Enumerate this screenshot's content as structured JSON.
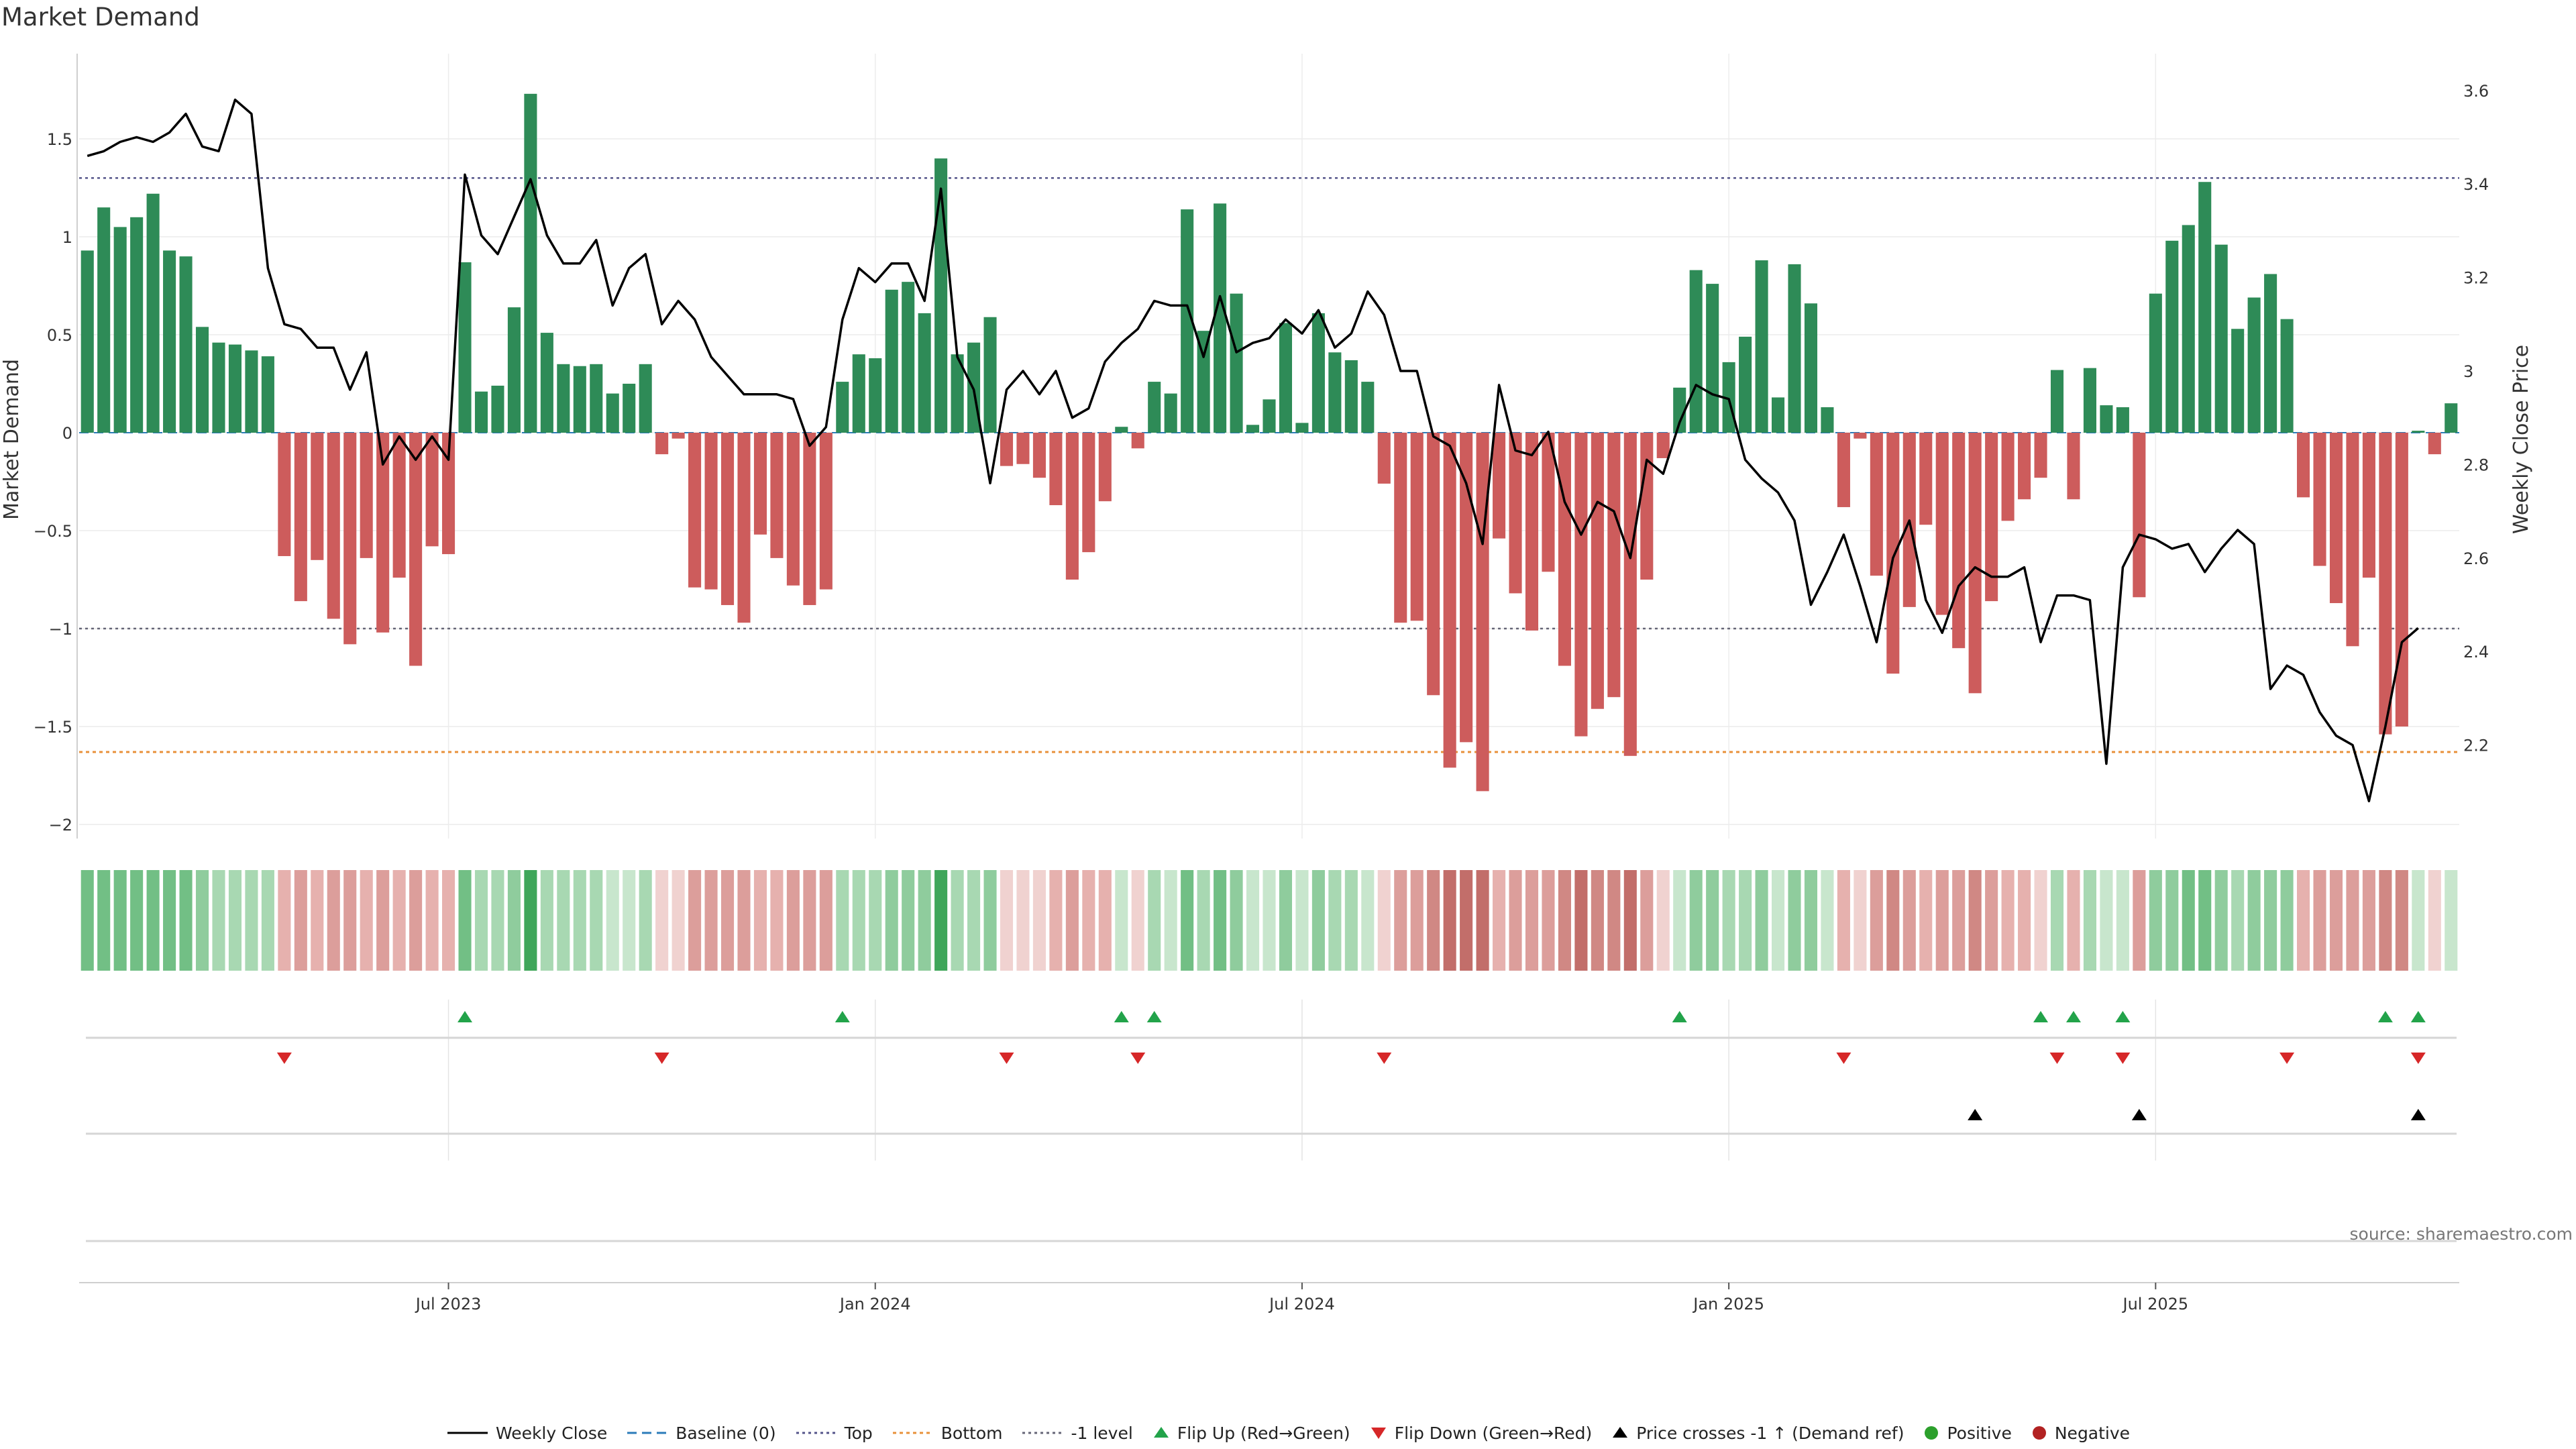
{
  "title": "Market Demand",
  "source": "source: sharemaestro.com",
  "colors": {
    "positive_bar": "#2e8b57",
    "negative_bar": "#cd5c5c",
    "price_line": "#000000",
    "top_line": "#55558a",
    "bottom_line": "#e8913a",
    "minus1_line": "#666677",
    "flip_up": "#22a34a",
    "flip_down": "#d62728",
    "cross_marker": "#000000",
    "positive_dot": "#2ca02c",
    "negative_dot": "#b22222"
  },
  "chart_data": {
    "type": "bar",
    "title": "Market Demand",
    "ylabel": "Market Demand",
    "y2label": "Weekly Close Price",
    "ylim": [
      -2.05,
      1.95
    ],
    "y2lim": [
      2.0,
      3.63
    ],
    "yticks": [
      {
        "v": 1.5,
        "label": "1.5"
      },
      {
        "v": 1,
        "label": "1"
      },
      {
        "v": 0.5,
        "label": "0.5"
      },
      {
        "v": 0,
        "label": "0"
      },
      {
        "v": -0.5,
        "label": "−0.5"
      },
      {
        "v": -1,
        "label": "−1"
      },
      {
        "v": -1.5,
        "label": "−1.5"
      },
      {
        "v": -2,
        "label": "−2"
      }
    ],
    "y2ticks": [
      {
        "v": 3.6,
        "label": "3.6"
      },
      {
        "v": 3.4,
        "label": "3.4"
      },
      {
        "v": 3.2,
        "label": "3.2"
      },
      {
        "v": 3.0,
        "label": "3"
      },
      {
        "v": 2.8,
        "label": "2.8"
      },
      {
        "v": 2.6,
        "label": "2.6"
      },
      {
        "v": 2.4,
        "label": "2.4"
      },
      {
        "v": 2.2,
        "label": "2.2"
      }
    ],
    "xticks": [
      {
        "i": 22,
        "label": "Jul 2023"
      },
      {
        "i": 48,
        "label": "Jan 2024"
      },
      {
        "i": 74,
        "label": "Jul 2024"
      },
      {
        "i": 100,
        "label": "Jan 2025"
      },
      {
        "i": 126,
        "label": "Jul 2025"
      }
    ],
    "levels": {
      "top": 1.3,
      "bottom": -1.63,
      "minus1": -1.0
    },
    "demand": [
      0.93,
      1.15,
      1.05,
      1.1,
      1.22,
      0.93,
      0.9,
      0.54,
      0.46,
      0.45,
      0.42,
      0.39,
      -0.63,
      -0.86,
      -0.65,
      -0.95,
      -1.08,
      -0.64,
      -1.02,
      -0.74,
      -1.19,
      -0.58,
      -0.62,
      0.87,
      0.21,
      0.24,
      0.64,
      1.73,
      0.51,
      0.35,
      0.34,
      0.35,
      0.2,
      0.25,
      0.35,
      -0.11,
      -0.03,
      -0.79,
      -0.8,
      -0.88,
      -0.97,
      -0.52,
      -0.64,
      -0.78,
      -0.88,
      -0.8,
      0.26,
      0.4,
      0.38,
      0.73,
      0.77,
      0.61,
      1.4,
      0.4,
      0.46,
      0.59,
      -0.17,
      -0.16,
      -0.23,
      -0.37,
      -0.75,
      -0.61,
      -0.35,
      0.03,
      -0.08,
      0.26,
      0.2,
      1.14,
      0.52,
      1.17,
      0.71,
      0.04,
      0.17,
      0.56,
      0.05,
      0.61,
      0.41,
      0.37,
      0.26,
      -0.26,
      -0.97,
      -0.96,
      -1.34,
      -1.71,
      -1.58,
      -1.83,
      -0.54,
      -0.82,
      -1.01,
      -0.71,
      -1.19,
      -1.55,
      -1.41,
      -1.35,
      -1.65,
      -0.75,
      -0.13,
      0.23,
      0.83,
      0.76,
      0.36,
      0.49,
      0.88,
      0.18,
      0.86,
      0.66,
      0.13,
      -0.38,
      -0.03,
      -0.73,
      -1.23,
      -0.89,
      -0.47,
      -0.93,
      -1.1,
      -1.33,
      -0.86,
      -0.45,
      -0.34,
      -0.23,
      0.32,
      -0.34,
      0.33,
      0.14,
      0.13,
      -0.84,
      0.71,
      0.98,
      1.06,
      1.28,
      0.96,
      0.53,
      0.69,
      0.81,
      0.58,
      -0.33,
      -0.68,
      -0.87,
      -1.09,
      -0.74,
      -1.54,
      -1.5,
      0.01,
      -0.11,
      0.15
    ],
    "price": [
      3.46,
      3.47,
      3.49,
      3.5,
      3.49,
      3.51,
      3.55,
      3.48,
      3.47,
      3.58,
      3.55,
      3.22,
      3.1,
      3.09,
      3.05,
      3.05,
      2.96,
      3.04,
      2.8,
      2.86,
      2.81,
      2.86,
      2.81,
      3.42,
      3.29,
      3.25,
      3.33,
      3.41,
      3.29,
      3.23,
      3.23,
      3.28,
      3.14,
      3.22,
      3.25,
      3.1,
      3.15,
      3.11,
      3.03,
      2.99,
      2.95,
      2.95,
      2.95,
      2.94,
      2.84,
      2.88,
      3.11,
      3.22,
      3.19,
      3.23,
      3.23,
      3.15,
      3.39,
      3.03,
      2.96,
      2.76,
      2.96,
      3.0,
      2.95,
      3.0,
      2.9,
      2.92,
      3.02,
      3.06,
      3.09,
      3.15,
      3.14,
      3.14,
      3.03,
      3.16,
      3.04,
      3.06,
      3.07,
      3.11,
      3.08,
      3.13,
      3.05,
      3.08,
      3.17,
      3.12,
      3.0,
      3.0,
      2.86,
      2.84,
      2.76,
      2.63,
      2.97,
      2.83,
      2.82,
      2.87,
      2.72,
      2.65,
      2.72,
      2.7,
      2.6,
      2.81,
      2.78,
      2.89,
      2.97,
      2.95,
      2.94,
      2.81,
      2.77,
      2.74,
      2.68,
      2.5,
      2.57,
      2.65,
      2.54,
      2.42,
      2.6,
      2.68,
      2.51,
      2.44,
      2.54,
      2.58,
      2.56,
      2.56,
      2.58,
      2.42,
      2.52,
      2.52,
      2.51,
      2.16,
      2.58,
      2.65,
      2.64,
      2.62,
      2.63,
      2.57,
      2.62,
      2.66,
      2.63,
      2.32,
      2.37,
      2.35,
      2.27,
      2.22,
      2.2,
      2.08,
      2.24,
      2.42,
      2.45
    ],
    "strip_levels": [
      4,
      4,
      4,
      4,
      4,
      4,
      4,
      3,
      2,
      2,
      2,
      2,
      -2,
      -3,
      -2,
      -3,
      -3,
      -2,
      -3,
      -2,
      -3,
      -2,
      -2,
      4,
      2,
      2,
      3,
      5,
      2,
      2,
      2,
      2,
      1,
      1,
      2,
      -1,
      -1,
      -3,
      -3,
      -3,
      -3,
      -2,
      -2,
      -3,
      -3,
      -3,
      2,
      2,
      2,
      3,
      3,
      3,
      5,
      2,
      2,
      3,
      -1,
      -1,
      -1,
      -2,
      -3,
      -2,
      -2,
      1,
      -1,
      2,
      1,
      4,
      2,
      4,
      3,
      1,
      1,
      3,
      1,
      3,
      2,
      2,
      1,
      -1,
      -3,
      -3,
      -4,
      -5,
      -5,
      -5,
      -2,
      -3,
      -3,
      -3,
      -4,
      -5,
      -4,
      -4,
      -5,
      -3,
      -1,
      1,
      3,
      3,
      2,
      2,
      3,
      1,
      3,
      3,
      1,
      -2,
      -1,
      -3,
      -4,
      -3,
      -2,
      -3,
      -3,
      -4,
      -3,
      -2,
      -2,
      -1,
      2,
      -2,
      2,
      1,
      1,
      -3,
      3,
      3,
      4,
      4,
      3,
      2,
      3,
      3,
      3,
      -2,
      -3,
      -3,
      -3,
      -3,
      -4,
      -4,
      1,
      -1,
      1
    ],
    "flip_up_idx": [
      23,
      46,
      63,
      65,
      97,
      119,
      121,
      124,
      140,
      142
    ],
    "flip_down_idx": [
      12,
      35,
      56,
      64,
      79,
      107,
      120,
      124,
      134,
      142
    ],
    "cross_up_idx": [
      115,
      125,
      142
    ]
  },
  "legend": [
    {
      "key": "weekly_close",
      "label": "Weekly Close"
    },
    {
      "key": "baseline",
      "label": "Baseline (0)"
    },
    {
      "key": "top",
      "label": "Top"
    },
    {
      "key": "bottom",
      "label": "Bottom"
    },
    {
      "key": "minus1",
      "label": "-1 level"
    },
    {
      "key": "flip_up",
      "label": "Flip Up (Red→Green)"
    },
    {
      "key": "flip_down",
      "label": "Flip Down (Green→Red)"
    },
    {
      "key": "cross",
      "label": "Price crosses -1 ↑ (Demand ref)"
    },
    {
      "key": "positive",
      "label": "Positive"
    },
    {
      "key": "negative",
      "label": "Negative"
    }
  ]
}
